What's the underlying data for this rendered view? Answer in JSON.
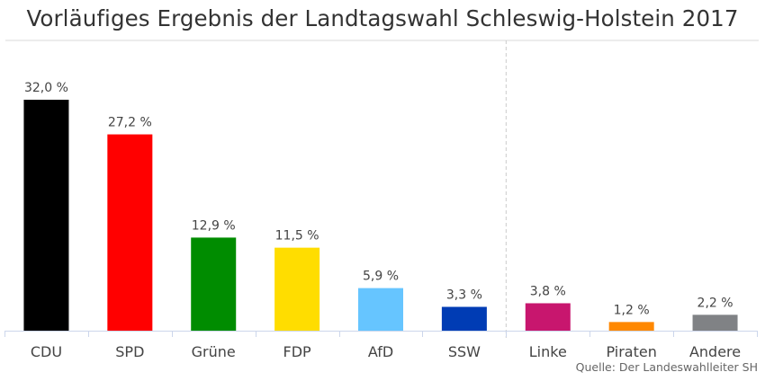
{
  "chart_data": {
    "type": "bar",
    "title": "Vorläufiges Ergebnis der Landtagswahl Schleswig-Holstein 2017",
    "xlabel": "",
    "ylabel": "",
    "ylim": [
      0,
      32.0
    ],
    "grid": false,
    "categories": [
      "CDU",
      "SPD",
      "Grüne",
      "FDP",
      "AfD",
      "SSW",
      "Linke",
      "Piraten",
      "Andere"
    ],
    "values": [
      32.0,
      27.2,
      12.9,
      11.5,
      5.9,
      3.3,
      3.8,
      1.2,
      2.2
    ],
    "value_labels": [
      "32,0 %",
      "27,2 %",
      "12,9 %",
      "11,5 %",
      "5,9 %",
      "3,3 %",
      "3,8 %",
      "1,2 %",
      "2,2 %"
    ],
    "colors": [
      "#000000",
      "#ff0000",
      "#008c00",
      "#ffdd00",
      "#66c5ff",
      "#003cb4",
      "#c8166e",
      "#ff8800",
      "#808285"
    ],
    "separator_after_category": "SSW",
    "source": "Quelle: Der Landeswahlleiter SH"
  },
  "colors": {
    "title": "#333333",
    "axis": "#ccd6eb",
    "title_rule": "#e6e6e6",
    "separator": "#cccccc"
  }
}
